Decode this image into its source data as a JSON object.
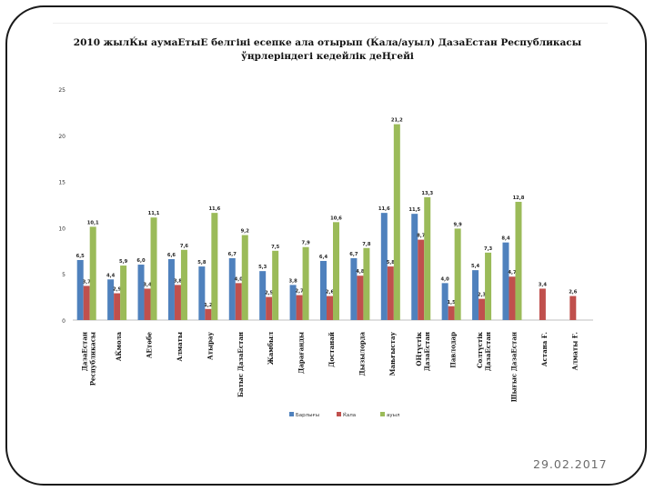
{
  "slide": {
    "date": "29.02.2017"
  },
  "chart_data": {
    "type": "bar",
    "title_line1": "2010 жылЌы аумаЕтыЕ белгіні есепке ала отырып (Ќала/ауыл) ДазаЕстан Республикасы",
    "title_line2": "ўңрлеріндегі кедейлік деҢгейі",
    "categories": [
      "ДазаЕстан Республикасы",
      "АЌмола",
      "АЕтөбе",
      "Алматы",
      "Атырау",
      "Батыс ДазаЕстан",
      "Жамбыл",
      "Дарағанды",
      "Достанай",
      "Дызылорда",
      "Мањғыстау",
      "ОҢтүстік ДазаЕстан",
      "Павлодар",
      "Солтүстік ДазаЕстан",
      "Шығыс ДазаЕстан",
      "Астана Ғ.",
      "Алматы Ғ."
    ],
    "category_lines": [
      [
        "ДазаЕстан",
        "Республикасы"
      ],
      [
        "АЌмола"
      ],
      [
        "АЕтөбе"
      ],
      [
        "Алматы"
      ],
      [
        "Атырау"
      ],
      [
        "Батыс ДазаЕстан"
      ],
      [
        "Жамбыл"
      ],
      [
        "Дарағанды"
      ],
      [
        "Достанай"
      ],
      [
        "Дызылорда"
      ],
      [
        "Мањғыстау"
      ],
      [
        "ОҢтүстік",
        "ДазаЕстан"
      ],
      [
        "Павлодар"
      ],
      [
        "Солтүстік",
        "ДазаЕстан"
      ],
      [
        "Шығыс ДазаЕстан"
      ],
      [
        "Астана Ғ."
      ],
      [
        "Алматы Ғ."
      ]
    ],
    "series": [
      {
        "name": "Барлығы",
        "color": "#4f81bd",
        "values": [
          6.5,
          4.4,
          6.0,
          6.6,
          5.8,
          6.7,
          5.3,
          3.8,
          6.4,
          6.7,
          11.6,
          11.5,
          4.0,
          5.4,
          8.4,
          null,
          null
        ],
        "labels": [
          "6,5",
          "4,4",
          "6,0",
          "6,6",
          "5,8",
          "6,7",
          "5,3",
          "3,8",
          "6,4",
          "6,7",
          "11,6",
          "11,5",
          "4,0",
          "5,4",
          "8,4",
          "",
          ""
        ]
      },
      {
        "name": "Ќала",
        "color": "#c0504d",
        "values": [
          3.7,
          2.9,
          3.4,
          3.8,
          1.2,
          4.0,
          2.5,
          2.7,
          2.6,
          4.8,
          5.8,
          8.7,
          1.5,
          2.3,
          4.7,
          3.4,
          2.6
        ],
        "labels": [
          "3,7",
          "2,9",
          "3,4",
          "3,8",
          "1,2",
          "4,0",
          "2,5",
          "2,7",
          "2,6",
          "4,8",
          "5,8",
          "8,7",
          "1,5",
          "2,3",
          "4,7",
          "3,4",
          "2,6"
        ]
      },
      {
        "name": "ауыл",
        "color": "#9bbb59",
        "values": [
          10.1,
          5.9,
          11.1,
          7.6,
          11.6,
          9.2,
          7.5,
          7.9,
          10.6,
          7.8,
          21.2,
          13.3,
          9.9,
          7.3,
          12.8,
          null,
          null
        ],
        "labels": [
          "10,1",
          "5,9",
          "11,1",
          "7,6",
          "11,6",
          "9,2",
          "7,5",
          "7,9",
          "10,6",
          "7,8",
          "21,2",
          "13,3",
          "9,9",
          "7,3",
          "12,8",
          "",
          ""
        ]
      }
    ],
    "y_ticks": [
      "0",
      "5",
      "10",
      "15",
      "20",
      "25"
    ],
    "ylim": [
      0,
      25
    ],
    "xlabel": "",
    "ylabel": "",
    "grid": false,
    "legend_position": "bottom"
  }
}
